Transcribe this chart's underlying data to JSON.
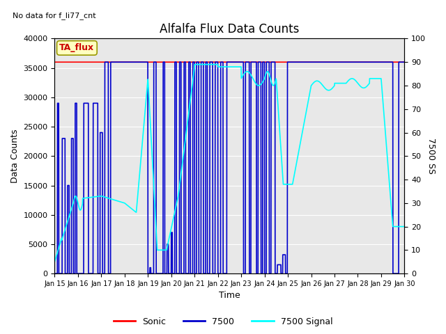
{
  "title": "Alfalfa Flux Data Counts",
  "no_data_text": "No data for f_li77_cnt",
  "ta_flux_label": "TA_flux",
  "xlabel": "Time",
  "ylabel_left": "Data Counts",
  "ylabel_right": "7500 SS",
  "ylim_left": [
    0,
    40000
  ],
  "ylim_right": [
    0,
    100
  ],
  "xlim": [
    0,
    15
  ],
  "xtick_labels": [
    "Jan 15",
    "Jan 16",
    "Jan 17",
    "Jan 18",
    "Jan 19",
    "Jan 20",
    "Jan 21",
    "Jan 22",
    "Jan 23",
    "Jan 24",
    "Jan 25",
    "Jan 26",
    "Jan 27",
    "Jan 28",
    "Jan 29",
    "Jan 30"
  ],
  "yticks_left": [
    0,
    5000,
    10000,
    15000,
    20000,
    25000,
    30000,
    35000,
    40000
  ],
  "yticks_right": [
    0,
    10,
    20,
    30,
    40,
    50,
    60,
    70,
    80,
    90,
    100
  ],
  "sonic_color": "#FF0000",
  "blue_color": "#0000CC",
  "cyan_color": "#00FFFF",
  "bg_color": "#E8E8E8",
  "legend_labels": [
    "Sonic",
    "7500",
    "7500 Signal"
  ]
}
